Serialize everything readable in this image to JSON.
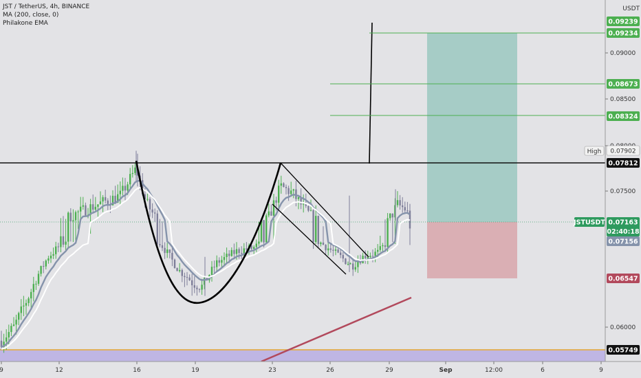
{
  "legend": {
    "title": "JST / TetherUS, 4h, BINANCE",
    "ma_label": "MA (200, close, 0)",
    "ema_label": "Philakone EMA"
  },
  "axis": {
    "currency": "USDT",
    "ticks": [
      "0.09000",
      "0.08500",
      "0.08000",
      "0.07500",
      "0.06000"
    ],
    "dates": [
      "9",
      "12",
      "16",
      "19",
      "23",
      "26",
      "29",
      "Sep",
      "12:00",
      "6",
      "9"
    ]
  },
  "tags": {
    "t1": "0.09239",
    "t2": "0.09234",
    "t3": "0.08673",
    "t4": "0.08324",
    "high_label": "High",
    "high_value": "0.07902",
    "neckline": "0.07812",
    "symbol": "JSTUSDT",
    "price": "0.07163",
    "countdown": "02:40:18",
    "ma": "0.07156",
    "stop": "0.06547",
    "support": "0.05749"
  },
  "colors": {
    "background": "#e3e3e6",
    "bull_candle": "#4caf50",
    "bear_candle": "#7e7e99",
    "ma200": "#b2495c",
    "ema_blue": "#8593ab",
    "ema_white": "#ffffff",
    "target_zone": "#9ec9c2",
    "stop_zone": "#d8a9ae",
    "target_line": "#4caf50",
    "stop_tag": "#b2495c",
    "support_line": "#e0a030"
  },
  "chart_data": {
    "type": "candlestick",
    "symbol": "JST / TetherUS",
    "interval": "4h",
    "exchange": "BINANCE",
    "y_axis_ticks": [
      0.06,
      0.075,
      0.08,
      0.085,
      0.09
    ],
    "x_axis_labels": [
      "9",
      "12",
      "16",
      "19",
      "23",
      "26",
      "29",
      "Sep",
      "12:00",
      "6",
      "9"
    ],
    "price_levels": {
      "target_1": 0.09239,
      "target_2": 0.09234,
      "target_3": 0.08673,
      "target_4": 0.08324,
      "high": 0.07902,
      "neckline": 0.07812,
      "last_price": 0.07163,
      "ma": 0.07156,
      "stop_loss": 0.06547,
      "support": 0.05749
    },
    "patterns": [
      "cup and handle",
      "descending channel (handle)",
      "long position: entry 0.07163, target 0.09234, stop 0.06547"
    ]
  }
}
